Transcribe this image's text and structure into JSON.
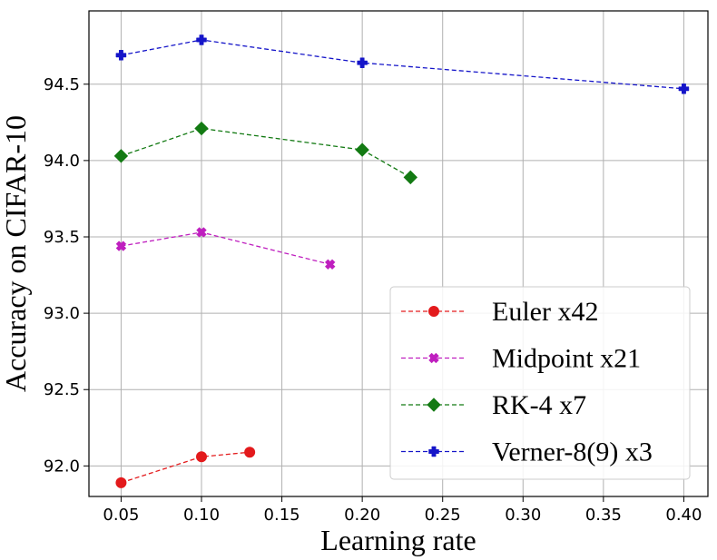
{
  "chart_data": {
    "type": "line",
    "title": "",
    "xlabel": "Learning rate",
    "ylabel": "Accuracy on CIFAR-10",
    "xlim": [
      0.03,
      0.415
    ],
    "ylim": [
      91.8,
      94.98
    ],
    "xticks": [
      0.05,
      0.1,
      0.15,
      0.2,
      0.25,
      0.3,
      0.35,
      0.4
    ],
    "xtick_labels": [
      "0.05",
      "0.10",
      "0.15",
      "0.20",
      "0.25",
      "0.30",
      "0.35",
      "0.40"
    ],
    "yticks": [
      92.0,
      92.5,
      93.0,
      93.5,
      94.0,
      94.5
    ],
    "ytick_labels": [
      "92.0",
      "92.5",
      "93.0",
      "93.5",
      "94.0",
      "94.5"
    ],
    "grid": true,
    "legend_position": "lower-right",
    "series": [
      {
        "name": "Euler x42",
        "color": "#e31a1c",
        "marker": "circle",
        "line": "dashed",
        "x": [
          0.05,
          0.1,
          0.13
        ],
        "y": [
          91.89,
          92.06,
          92.09
        ]
      },
      {
        "name": "Midpoint x21",
        "color": "#bf1fbf",
        "marker": "x-filled",
        "line": "dashed",
        "x": [
          0.05,
          0.1,
          0.18
        ],
        "y": [
          93.44,
          93.53,
          93.32
        ]
      },
      {
        "name": "RK-4 x7",
        "color": "#137a13",
        "marker": "diamond",
        "line": "dashed",
        "x": [
          0.05,
          0.1,
          0.2,
          0.23
        ],
        "y": [
          94.03,
          94.21,
          94.07,
          93.89
        ]
      },
      {
        "name": "Verner-8(9) x3",
        "color": "#1515c9",
        "marker": "plus-filled",
        "line": "dashed",
        "x": [
          0.05,
          0.1,
          0.2,
          0.4
        ],
        "y": [
          94.69,
          94.79,
          94.64,
          94.47
        ]
      }
    ]
  }
}
